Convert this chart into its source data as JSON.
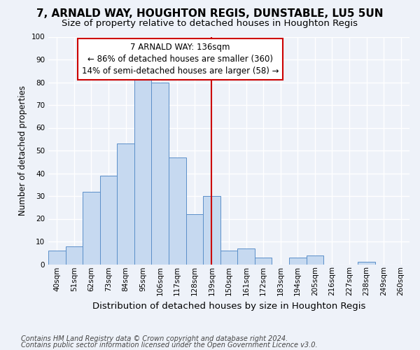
{
  "title": "7, ARNALD WAY, HOUGHTON REGIS, DUNSTABLE, LU5 5UN",
  "subtitle": "Size of property relative to detached houses in Houghton Regis",
  "xlabel": "Distribution of detached houses by size in Houghton Regis",
  "ylabel": "Number of detached properties",
  "bin_labels": [
    "40sqm",
    "51sqm",
    "62sqm",
    "73sqm",
    "84sqm",
    "95sqm",
    "106sqm",
    "117sqm",
    "128sqm",
    "139sqm",
    "150sqm",
    "161sqm",
    "172sqm",
    "183sqm",
    "194sqm",
    "205sqm",
    "216sqm",
    "227sqm",
    "238sqm",
    "249sqm",
    "260sqm"
  ],
  "bar_values": [
    6,
    8,
    32,
    39,
    53,
    81,
    80,
    47,
    22,
    30,
    6,
    7,
    3,
    0,
    3,
    4,
    0,
    0,
    1,
    0,
    0
  ],
  "bar_color": "#c6d9f0",
  "bar_edge_color": "#5b8fc9",
  "vline_x_label": "139sqm",
  "vline_color": "#cc0000",
  "annotation_text": "7 ARNALD WAY: 136sqm\n← 86% of detached houses are smaller (360)\n14% of semi-detached houses are larger (58) →",
  "annotation_box_edge_color": "#cc0000",
  "ylim": [
    0,
    100
  ],
  "yticks": [
    0,
    10,
    20,
    30,
    40,
    50,
    60,
    70,
    80,
    90,
    100
  ],
  "footnote1": "Contains HM Land Registry data © Crown copyright and database right 2024.",
  "footnote2": "Contains public sector information licensed under the Open Government Licence v3.0.",
  "background_color": "#eef2f9",
  "grid_color": "#ffffff",
  "title_fontsize": 11,
  "subtitle_fontsize": 9.5,
  "xlabel_fontsize": 9.5,
  "ylabel_fontsize": 8.5,
  "annotation_fontsize": 8.5,
  "footnote_fontsize": 7,
  "tick_fontsize": 7.5
}
